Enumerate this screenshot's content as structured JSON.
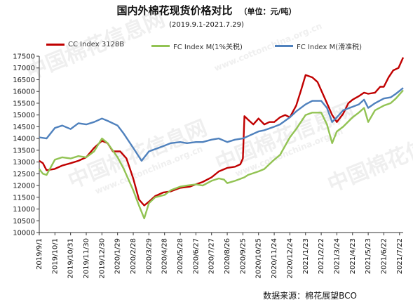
{
  "header": {
    "title": "国内外棉花现货价格对比",
    "unit": "（单位：元/吨）",
    "date_range": "(2019.9.1-2021.7.29)"
  },
  "footer": {
    "source": "数据来源：棉花展望BCO"
  },
  "watermark": {
    "text": "中国棉花信息网",
    "url": "www.cottonchina.org.cn"
  },
  "colors": {
    "cc": "#c00000",
    "fc1": "#92c353",
    "fc2": "#4f81bd"
  },
  "chart_data": {
    "type": "line",
    "ylim": [
      10000,
      17500
    ],
    "yticks": [
      10000,
      10500,
      11000,
      11500,
      12000,
      12500,
      13000,
      13500,
      14000,
      14500,
      15000,
      15500,
      16000,
      16500,
      17000,
      17500
    ],
    "x_range": [
      "2019-09-01",
      "2021-07-29"
    ],
    "xtick_labels": [
      "2019/9/1",
      "2019/10/1",
      "2019/10/31",
      "2019/11/30",
      "2019/12/30",
      "2020/1/29",
      "2020/2/28",
      "2020/3/29",
      "2020/4/28",
      "2020/5/28",
      "2020/6/27",
      "2020/7/27",
      "2020/8/26",
      "2020/9/25",
      "2020/10/25",
      "2020/11/24",
      "2020/12/24",
      "2021/1/23",
      "2021/2/22",
      "2021/3/24",
      "2021/4/23",
      "2021/5/23",
      "2021/6/22",
      "2021/7/22"
    ],
    "series": [
      {
        "name": "CC Index 3128B",
        "color": "#c00000",
        "points": [
          [
            "2019-09-01",
            13050
          ],
          [
            "2019-09-08",
            12950
          ],
          [
            "2019-09-15",
            12650
          ],
          [
            "2019-09-30",
            12700
          ],
          [
            "2019-10-15",
            12850
          ],
          [
            "2019-10-31",
            12950
          ],
          [
            "2019-11-15",
            13050
          ],
          [
            "2019-11-30",
            13200
          ],
          [
            "2019-12-15",
            13600
          ],
          [
            "2019-12-30",
            13900
          ],
          [
            "2020-01-10",
            13800
          ],
          [
            "2020-01-20",
            13450
          ],
          [
            "2020-02-03",
            13450
          ],
          [
            "2020-02-15",
            13150
          ],
          [
            "2020-02-28",
            12300
          ],
          [
            "2020-03-10",
            11400
          ],
          [
            "2020-03-20",
            11150
          ],
          [
            "2020-03-31",
            11350
          ],
          [
            "2020-04-10",
            11550
          ],
          [
            "2020-04-25",
            11700
          ],
          [
            "2020-05-10",
            11750
          ],
          [
            "2020-05-28",
            11900
          ],
          [
            "2020-06-15",
            11950
          ],
          [
            "2020-06-27",
            12050
          ],
          [
            "2020-07-10",
            12150
          ],
          [
            "2020-07-27",
            12350
          ],
          [
            "2020-08-10",
            12600
          ],
          [
            "2020-08-26",
            12750
          ],
          [
            "2020-09-10",
            12800
          ],
          [
            "2020-09-20",
            12900
          ],
          [
            "2020-09-25",
            13150
          ],
          [
            "2020-09-28",
            14950
          ],
          [
            "2020-10-05",
            14800
          ],
          [
            "2020-10-15",
            14600
          ],
          [
            "2020-10-25",
            14850
          ],
          [
            "2020-11-05",
            14600
          ],
          [
            "2020-11-15",
            14700
          ],
          [
            "2020-11-24",
            14700
          ],
          [
            "2020-12-05",
            14900
          ],
          [
            "2020-12-15",
            15000
          ],
          [
            "2020-12-24",
            14900
          ],
          [
            "2021-01-05",
            15400
          ],
          [
            "2021-01-15",
            16100
          ],
          [
            "2021-01-23",
            16700
          ],
          [
            "2021-02-05",
            16600
          ],
          [
            "2021-02-15",
            16400
          ],
          [
            "2021-02-22",
            16050
          ],
          [
            "2021-03-05",
            15500
          ],
          [
            "2021-03-15",
            15000
          ],
          [
            "2021-03-24",
            14700
          ],
          [
            "2021-04-05",
            15050
          ],
          [
            "2021-04-15",
            15500
          ],
          [
            "2021-04-23",
            15650
          ],
          [
            "2021-05-05",
            15800
          ],
          [
            "2021-05-15",
            15950
          ],
          [
            "2021-05-23",
            15900
          ],
          [
            "2021-06-05",
            15950
          ],
          [
            "2021-06-15",
            16200
          ],
          [
            "2021-06-22",
            16200
          ],
          [
            "2021-07-01",
            16600
          ],
          [
            "2021-07-10",
            16900
          ],
          [
            "2021-07-20",
            17000
          ],
          [
            "2021-07-29",
            17450
          ]
        ]
      },
      {
        "name": "FC Index M(1%关税)",
        "color": "#92c353",
        "points": [
          [
            "2019-09-01",
            12700
          ],
          [
            "2019-09-08",
            12500
          ],
          [
            "2019-09-15",
            12450
          ],
          [
            "2019-10-01",
            13100
          ],
          [
            "2019-10-15",
            13200
          ],
          [
            "2019-10-31",
            13150
          ],
          [
            "2019-11-15",
            13250
          ],
          [
            "2019-11-30",
            13200
          ],
          [
            "2019-12-15",
            13450
          ],
          [
            "2019-12-30",
            14000
          ],
          [
            "2020-01-10",
            13800
          ],
          [
            "2020-01-29",
            13200
          ],
          [
            "2020-02-10",
            12700
          ],
          [
            "2020-02-28",
            11800
          ],
          [
            "2020-03-10",
            11150
          ],
          [
            "2020-03-20",
            10600
          ],
          [
            "2020-03-29",
            11250
          ],
          [
            "2020-04-10",
            11500
          ],
          [
            "2020-04-28",
            11600
          ],
          [
            "2020-05-10",
            11800
          ],
          [
            "2020-05-28",
            11950
          ],
          [
            "2020-06-10",
            12000
          ],
          [
            "2020-06-27",
            12050
          ],
          [
            "2020-07-10",
            12000
          ],
          [
            "2020-07-27",
            12200
          ],
          [
            "2020-08-10",
            12300
          ],
          [
            "2020-08-20",
            12250
          ],
          [
            "2020-08-26",
            12100
          ],
          [
            "2020-09-10",
            12200
          ],
          [
            "2020-09-28",
            12350
          ],
          [
            "2020-10-05",
            12450
          ],
          [
            "2020-10-25",
            12600
          ],
          [
            "2020-11-05",
            12700
          ],
          [
            "2020-11-24",
            13100
          ],
          [
            "2020-12-05",
            13300
          ],
          [
            "2020-12-24",
            14050
          ],
          [
            "2021-01-05",
            14400
          ],
          [
            "2021-01-23",
            15000
          ],
          [
            "2021-02-05",
            15100
          ],
          [
            "2021-02-22",
            15100
          ],
          [
            "2021-03-05",
            14600
          ],
          [
            "2021-03-15",
            13800
          ],
          [
            "2021-03-24",
            14300
          ],
          [
            "2021-04-05",
            14500
          ],
          [
            "2021-04-23",
            14900
          ],
          [
            "2021-05-05",
            15100
          ],
          [
            "2021-05-15",
            15300
          ],
          [
            "2021-05-23",
            14700
          ],
          [
            "2021-06-05",
            15200
          ],
          [
            "2021-06-22",
            15400
          ],
          [
            "2021-07-05",
            15500
          ],
          [
            "2021-07-15",
            15700
          ],
          [
            "2021-07-29",
            16050
          ]
        ]
      },
      {
        "name": "FC Index M(滑准税)",
        "color": "#4f81bd",
        "points": [
          [
            "2019-09-01",
            14050
          ],
          [
            "2019-09-15",
            14000
          ],
          [
            "2019-10-01",
            14450
          ],
          [
            "2019-10-15",
            14550
          ],
          [
            "2019-10-31",
            14400
          ],
          [
            "2019-11-15",
            14650
          ],
          [
            "2019-11-30",
            14600
          ],
          [
            "2019-12-15",
            14700
          ],
          [
            "2019-12-30",
            14850
          ],
          [
            "2020-01-10",
            14750
          ],
          [
            "2020-01-29",
            14550
          ],
          [
            "2020-02-10",
            14200
          ],
          [
            "2020-02-28",
            13600
          ],
          [
            "2020-03-15",
            13050
          ],
          [
            "2020-03-29",
            13450
          ],
          [
            "2020-04-10",
            13550
          ],
          [
            "2020-04-28",
            13700
          ],
          [
            "2020-05-10",
            13800
          ],
          [
            "2020-05-28",
            13850
          ],
          [
            "2020-06-10",
            13800
          ],
          [
            "2020-06-27",
            13850
          ],
          [
            "2020-07-10",
            13850
          ],
          [
            "2020-07-27",
            13950
          ],
          [
            "2020-08-10",
            14000
          ],
          [
            "2020-08-26",
            13850
          ],
          [
            "2020-09-10",
            13950
          ],
          [
            "2020-09-25",
            14000
          ],
          [
            "2020-10-05",
            14100
          ],
          [
            "2020-10-25",
            14300
          ],
          [
            "2020-11-05",
            14350
          ],
          [
            "2020-11-24",
            14500
          ],
          [
            "2020-12-05",
            14600
          ],
          [
            "2020-12-24",
            14900
          ],
          [
            "2021-01-05",
            15150
          ],
          [
            "2021-01-23",
            15450
          ],
          [
            "2021-02-05",
            15600
          ],
          [
            "2021-02-22",
            15600
          ],
          [
            "2021-03-05",
            15300
          ],
          [
            "2021-03-15",
            14700
          ],
          [
            "2021-03-24",
            14900
          ],
          [
            "2021-04-05",
            15200
          ],
          [
            "2021-04-23",
            15350
          ],
          [
            "2021-05-05",
            15450
          ],
          [
            "2021-05-15",
            15650
          ],
          [
            "2021-05-23",
            15300
          ],
          [
            "2021-06-05",
            15500
          ],
          [
            "2021-06-22",
            15700
          ],
          [
            "2021-07-05",
            15750
          ],
          [
            "2021-07-15",
            15900
          ],
          [
            "2021-07-29",
            16150
          ]
        ]
      }
    ]
  }
}
